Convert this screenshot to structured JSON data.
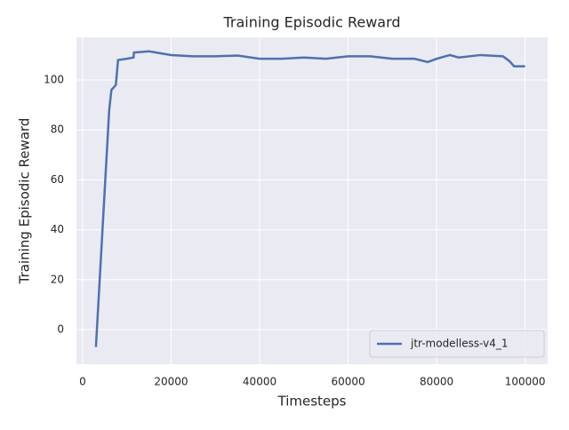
{
  "chart_data": {
    "type": "line",
    "title": "Training Episodic Reward",
    "x_label": "Timesteps",
    "y_label": "Training Episodic Reward",
    "x": [
      3000,
      6000,
      6500,
      7500,
      8000,
      10000,
      11500,
      11600,
      15000,
      20000,
      25000,
      30000,
      35000,
      40000,
      45000,
      50000,
      55000,
      60000,
      65000,
      70000,
      75000,
      78000,
      80000,
      83000,
      85000,
      90000,
      95000,
      96500,
      97500,
      100000
    ],
    "series": [
      {
        "name": "jtr-modelless-v4_1",
        "color": "#4c72b0",
        "values": [
          -7,
          88,
          96,
          98,
          108,
          108.5,
          109,
          111,
          111.5,
          110,
          109.5,
          109.5,
          109.8,
          108.5,
          108.5,
          109,
          108.5,
          109.5,
          109.5,
          108.5,
          108.5,
          107.2,
          108.5,
          110,
          109,
          110,
          109.5,
          107.5,
          105.5,
          105.5
        ]
      }
    ],
    "xlim": [
      -1400,
      105100
    ],
    "ylim": [
      -13.9,
      117.1
    ],
    "xticks": [
      0,
      20000,
      40000,
      60000,
      80000,
      100000
    ],
    "yticks": [
      0,
      20,
      40,
      60,
      80,
      100
    ],
    "grid": true,
    "legend": "lower right"
  }
}
